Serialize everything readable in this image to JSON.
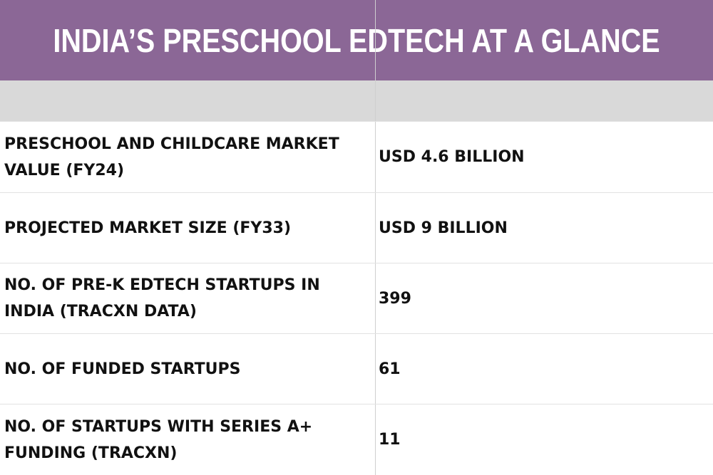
{
  "table": {
    "title": "INDIA’S PRESCHOOL EDTECH AT A GLANCE",
    "rows": [
      [
        "PRESCHOOL AND CHILDCARE MARKET VALUE (FY24)",
        "USD 4.6 BILLION"
      ],
      [
        "PROJECTED MARKET SIZE (FY33)",
        "USD 9 BILLION"
      ],
      [
        "NO. OF PRE-K EDTECH STARTUPS IN INDIA (TRACXN DATA)",
        399
      ],
      [
        "NO. OF FUNDED STARTUPS",
        61
      ],
      [
        "NO. OF STARTUPS WITH SERIES A+ FUNDING (TRACXN)",
        11
      ]
    ]
  }
}
